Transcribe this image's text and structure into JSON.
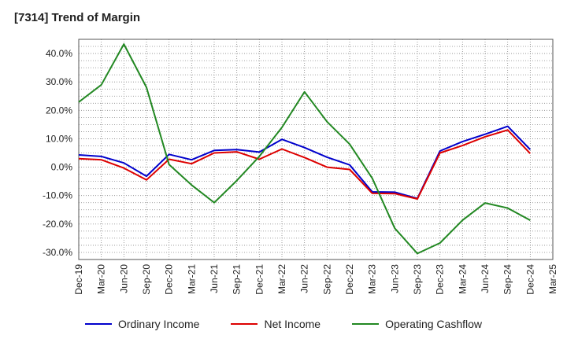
{
  "chart_data": {
    "type": "line",
    "title": "[7314]  Trend of Margin",
    "xlabel": "",
    "ylabel": "",
    "x": [
      "Dec-19",
      "Mar-20",
      "Jun-20",
      "Sep-20",
      "Dec-20",
      "Mar-21",
      "Jun-21",
      "Sep-21",
      "Dec-21",
      "Mar-22",
      "Jun-22",
      "Sep-22",
      "Dec-22",
      "Mar-23",
      "Jun-23",
      "Sep-23",
      "Dec-23",
      "Mar-24",
      "Jun-24",
      "Sep-24",
      "Dec-24",
      "Mar-25"
    ],
    "ylim": [
      -32.5,
      45
    ],
    "yticks": [
      40,
      30,
      20,
      10,
      0,
      -10,
      -20,
      -30
    ],
    "ytick_labels": [
      "40.0%",
      "30.0%",
      "20.0%",
      "10.0%",
      "0.0%",
      "-10.0%",
      "-20.0%",
      "-30.0%"
    ],
    "grid": true,
    "legend_position": "bottom",
    "series": [
      {
        "name": "Ordinary Income",
        "color": "#0000cc",
        "values": [
          4.3,
          3.8,
          1.5,
          -3.2,
          4.5,
          2.6,
          5.9,
          6.2,
          5.3,
          9.8,
          6.9,
          3.5,
          0.8,
          -8.7,
          -8.8,
          -11.0,
          5.7,
          9.0,
          11.6,
          14.4,
          6.2,
          null
        ]
      },
      {
        "name": "Net Income",
        "color": "#dd0000",
        "values": [
          3.0,
          2.6,
          -0.3,
          -4.5,
          2.8,
          1.2,
          5.0,
          5.4,
          2.8,
          6.4,
          3.4,
          0.0,
          -0.8,
          -9.2,
          -9.3,
          -11.2,
          5.0,
          7.6,
          10.7,
          13.1,
          4.8,
          null
        ]
      },
      {
        "name": "Operating Cashflow",
        "color": "#228822",
        "values": [
          22.9,
          29.0,
          43.3,
          28.1,
          0.9,
          -6.3,
          -12.5,
          -4.7,
          3.8,
          14.0,
          26.5,
          16.0,
          8.1,
          -3.9,
          -21.5,
          -30.4,
          -26.7,
          -18.7,
          -12.6,
          -14.4,
          -18.7,
          null
        ]
      }
    ]
  }
}
